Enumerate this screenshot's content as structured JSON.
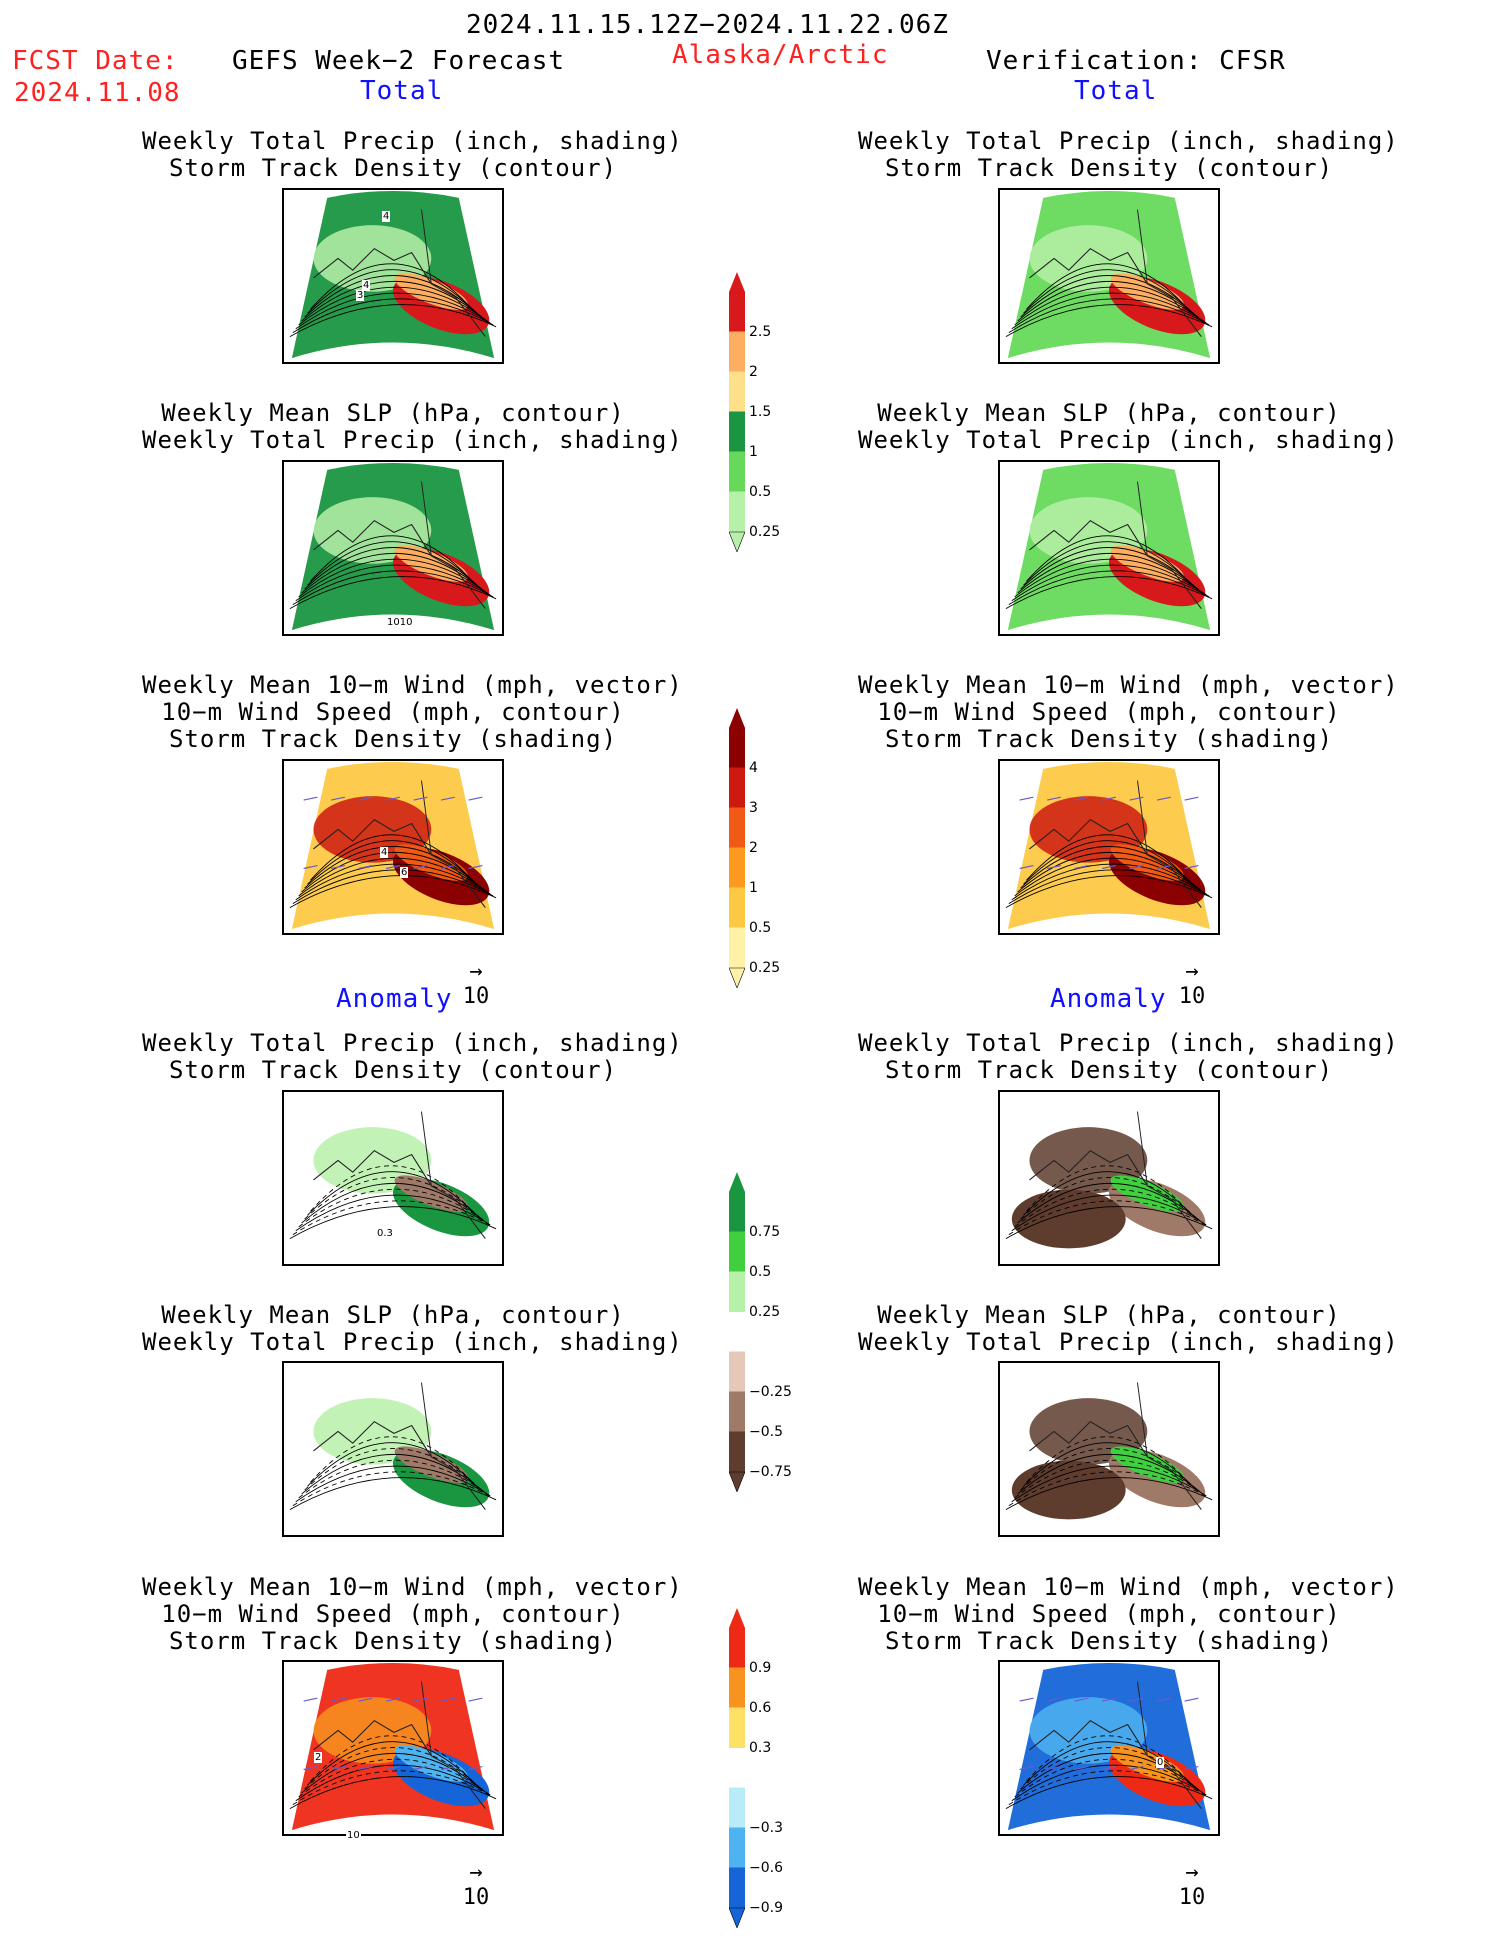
{
  "header": {
    "date_range": "2024.11.15.12Z−2024.11.22.06Z",
    "fcst_label": "FCST Date:",
    "fcst_date": "2024.11.08",
    "model_title": "GEFS Week−2 Forecast",
    "region": "Alaska/Arctic",
    "verification": "Verification: CFSR"
  },
  "sections": {
    "total_left": "Total",
    "total_right": "Total",
    "anomaly_left": "Anomaly",
    "anomaly_right": "Anomaly"
  },
  "panel_titles": {
    "precip_track": [
      "Weekly Total Precip (inch, shading)",
      "Storm Track Density (contour)"
    ],
    "slp_precip": [
      "Weekly Mean SLP (hPa, contour)",
      "Weekly Total Precip (inch, shading)"
    ],
    "wind_track": [
      "Weekly Mean 10−m Wind (mph, vector)",
      "10−m Wind Speed (mph, contour)",
      "Storm Track Density (shading)"
    ]
  },
  "contour_labels": {
    "total_left_precip": [
      "4",
      "4",
      "3"
    ],
    "total_left_slp": [
      "1010"
    ],
    "total_left_wind": [
      "4",
      "6"
    ],
    "anom_left_precip": [
      "0.3"
    ],
    "anom_left_wind": [
      "2",
      "10"
    ],
    "anom_right_wind": [
      "0"
    ]
  },
  "vector_scale": {
    "label": "10",
    "arrow": "→"
  },
  "colorbars": [
    {
      "name": "total-precip",
      "labels": [
        "2.5",
        "2",
        "1.5",
        "1",
        "0.5",
        "0.25"
      ],
      "colors": [
        "#d7191c",
        "#fdae61",
        "#fee08b",
        "#1a9641",
        "#66d95a",
        "#b7f0a8"
      ]
    },
    {
      "name": "total-track",
      "labels": [
        "4",
        "3",
        "2",
        "1",
        "0.5",
        "0.25"
      ],
      "colors": [
        "#8b0000",
        "#cc1a10",
        "#f05a14",
        "#fb9a1e",
        "#fdc843",
        "#fff2a8"
      ]
    },
    {
      "name": "anom-precip",
      "labels": [
        "0.75",
        "0.5",
        "0.25",
        "−0.25",
        "−0.5",
        "−0.75"
      ],
      "colors": [
        "#1a9641",
        "#3fcf3f",
        "#b7f0a8",
        "#ffffff",
        "#e6c8b8",
        "#a07a68",
        "#5e3c2e"
      ]
    },
    {
      "name": "anom-track",
      "labels": [
        "0.9",
        "0.6",
        "0.3",
        "−0.3",
        "−0.6",
        "−0.9"
      ],
      "colors": [
        "#ee2a16",
        "#f7931e",
        "#ffe066",
        "#ffffff",
        "#b9ecf8",
        "#4fb3f0",
        "#1565d8"
      ]
    }
  ]
}
